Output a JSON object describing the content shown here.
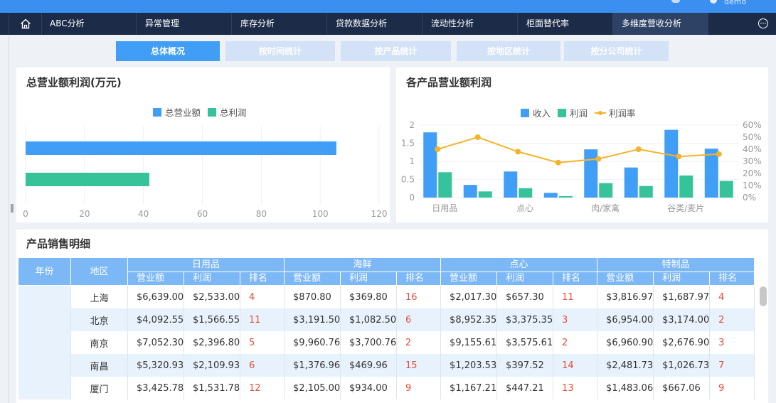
{
  "header": {
    "user_name": "demo"
  },
  "nav": {
    "items": [
      {
        "label": "ABC分析"
      },
      {
        "label": "异常管理"
      },
      {
        "label": "库存分析"
      },
      {
        "label": "贷款数据分析"
      },
      {
        "label": "流动性分析"
      },
      {
        "label": "柜面替代率"
      },
      {
        "label": "多维度营收分析"
      }
    ],
    "active_index": 6
  },
  "subtabs": {
    "items": [
      {
        "label": "总体概况"
      },
      {
        "label": "按时间统计"
      },
      {
        "label": "按产品统计"
      },
      {
        "label": "按地区统计"
      },
      {
        "label": "按分公司统计"
      }
    ],
    "active_index": 0
  },
  "panel_left": {
    "title": "总营业额利润(万元)"
  },
  "panel_right": {
    "title": "各产品营业额利润"
  },
  "panel_table": {
    "title": "产品销售明细"
  },
  "colors": {
    "blue": "#409ef6",
    "green": "#36c39a",
    "orange": "#f3b42c",
    "nav_bg": "#1c2c48"
  },
  "chart_data": [
    {
      "type": "bar",
      "orientation": "horizontal",
      "title": "总营业额利润(万元)",
      "series": [
        {
          "name": "总营业额",
          "values": [
            105.5
          ]
        },
        {
          "name": "总利润",
          "values": [
            42
          ]
        }
      ],
      "xlim": [
        0,
        120
      ],
      "xticks": [
        "0",
        "20",
        "40",
        "60",
        "80",
        "100",
        "120"
      ],
      "legend": "top-center",
      "grid": true
    },
    {
      "type": "bar",
      "title": "各产品营业额利润",
      "categories": [
        "日用品",
        "",
        "点心",
        "",
        "肉/家禽",
        "",
        "谷类/麦片",
        ""
      ],
      "series": [
        {
          "name": "收入",
          "values": [
            1.8,
            0.35,
            0.72,
            0.13,
            1.33,
            0.83,
            1.87,
            1.35
          ]
        },
        {
          "name": "利润",
          "values": [
            0.7,
            0.17,
            0.26,
            0.04,
            0.4,
            0.32,
            0.61,
            0.46
          ]
        },
        {
          "name": "利润率",
          "type": "line",
          "axis": "right",
          "values": [
            40,
            50,
            38,
            29,
            32,
            40,
            34,
            36
          ]
        }
      ],
      "ylim": [
        0,
        2
      ],
      "yticks": [
        "0",
        "0.5",
        "1",
        "1.5",
        "2"
      ],
      "y2lim": [
        0,
        60
      ],
      "y2ticks": [
        "0%",
        "10%",
        "20%",
        "30%",
        "40%",
        "50%",
        "60%"
      ],
      "legend": "top-center",
      "grid": true
    }
  ],
  "table": {
    "col_year": "年份",
    "col_region": "地区",
    "groups": [
      "日用品",
      "海鲜",
      "点心",
      "特制品"
    ],
    "subcols": [
      "营业额",
      "利润",
      "排名"
    ],
    "rows": [
      {
        "region": "上海",
        "cells": [
          "$6,639.00",
          "$2,533.00",
          "4",
          "$870.80",
          "$369.80",
          "16",
          "$2,017.30",
          "$657.30",
          "11",
          "$3,816.97",
          "$1,687.97",
          "4"
        ]
      },
      {
        "region": "北京",
        "cells": [
          "$4,092.55",
          "$1,566.55",
          "11",
          "$3,191.50",
          "$1,082.50",
          "6",
          "$8,952.35",
          "$3,375.35",
          "3",
          "$6,954.00",
          "$3,174.00",
          "2"
        ]
      },
      {
        "region": "南京",
        "cells": [
          "$7,052.30",
          "$2,396.80",
          "5",
          "$9,960.76",
          "$3,700.76",
          "2",
          "$9,155.61",
          "$3,575.61",
          "2",
          "$6,960.90",
          "$2,676.90",
          "3"
        ]
      },
      {
        "region": "南昌",
        "cells": [
          "$5,320.93",
          "$2,109.93",
          "6",
          "$1,376.96",
          "$469.96",
          "15",
          "$1,203.53",
          "$397.52",
          "14",
          "$2,481.73",
          "$1,026.73",
          "7"
        ]
      },
      {
        "region": "厦门",
        "cells": [
          "$3,425.78",
          "$1,531.78",
          "12",
          "$2,105.00",
          "$934.00",
          "9",
          "$1,167.21",
          "$447.21",
          "13",
          "$1,483.06",
          "$667.06",
          "9"
        ]
      }
    ]
  }
}
